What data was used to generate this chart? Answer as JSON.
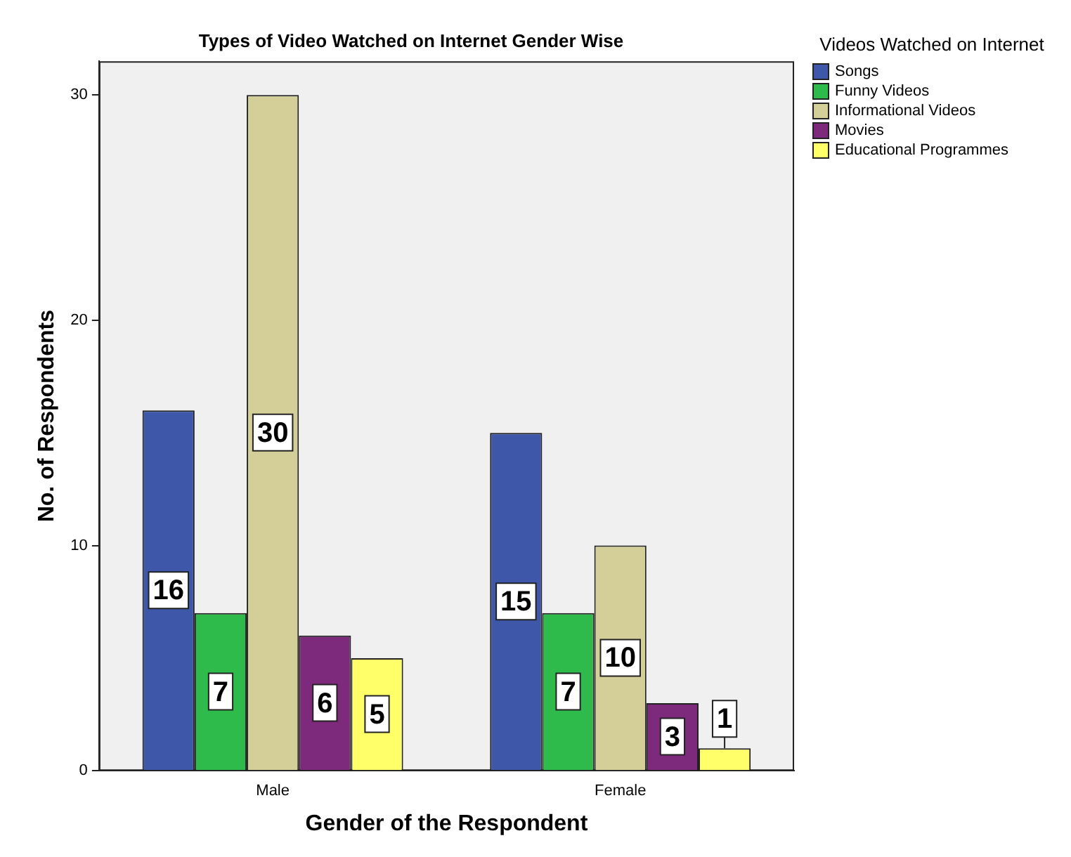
{
  "chart_data": {
    "type": "bar",
    "title": "Types of Video Watched on Internet Gender Wise",
    "xlabel": "Gender of the Respondent",
    "ylabel": "No. of Respondents",
    "legend_title": "Videos Watched on Internet",
    "categories": [
      "Male",
      "Female"
    ],
    "series": [
      {
        "name": "Songs",
        "color": "#3f57a8",
        "values": [
          16,
          15
        ]
      },
      {
        "name": "Funny Videos",
        "color": "#2ebb4c",
        "values": [
          7,
          7
        ]
      },
      {
        "name": "Informational Videos",
        "color": "#d4cf99",
        "values": [
          30,
          10
        ]
      },
      {
        "name": "Movies",
        "color": "#7e2a7c",
        "values": [
          6,
          3
        ]
      },
      {
        "name": "Educational Programmes",
        "color": "#ffff6a",
        "values": [
          5,
          1
        ]
      }
    ],
    "ylim": [
      0,
      31.5
    ],
    "yticks": [
      0,
      10,
      20,
      30
    ],
    "grid": false,
    "legend": "right",
    "data_labels": true
  }
}
